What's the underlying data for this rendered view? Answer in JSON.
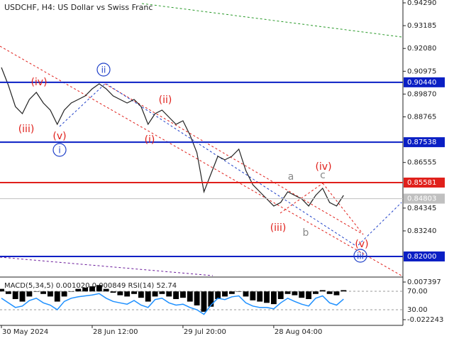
{
  "chart_data": [
    {
      "type": "line",
      "title": "USDCHF, H4:  US Dollar vs Swiss Franc",
      "color": "#222222",
      "x": [
        0,
        1,
        2,
        3,
        4,
        5,
        6,
        7,
        8,
        9,
        10,
        11,
        12,
        13,
        14,
        15,
        16,
        17,
        18,
        19,
        20,
        21,
        22,
        23,
        24,
        25,
        26,
        27,
        28,
        29,
        30,
        31,
        32,
        33,
        34,
        35,
        36,
        37,
        38,
        39,
        40,
        41,
        42,
        43,
        44,
        45,
        46,
        47,
        48,
        49
      ],
      "values": [
        0.91157,
        0.90297,
        0.89264,
        0.8892,
        0.89608,
        0.89953,
        0.89436,
        0.89092,
        0.88404,
        0.89092,
        0.89436,
        0.89608,
        0.89781,
        0.90125,
        0.90366,
        0.90125,
        0.89781,
        0.89608,
        0.89436,
        0.89608,
        0.89264,
        0.88404,
        0.8892,
        0.89092,
        0.88748,
        0.88404,
        0.88576,
        0.87887,
        0.87027,
        0.85133,
        0.85994,
        0.86855,
        0.86682,
        0.86855,
        0.87199,
        0.86166,
        0.85478,
        0.85133,
        0.84789,
        0.84445,
        0.84617,
        0.85133,
        0.84961,
        0.84789,
        0.84445,
        0.84961,
        0.85305,
        0.84617,
        0.84445,
        0.84961
      ],
      "xlim": [
        0,
        57.5
      ],
      "xticks": [
        {
          "value": 0,
          "label": "30 May 2024"
        },
        {
          "value": 13,
          "label": "28 Jun 12:00"
        },
        {
          "value": 26,
          "label": "29 Jul 20:00"
        },
        {
          "value": 39,
          "label": "28 Aug 04:00"
        }
      ],
      "ylim": [
        0.81071,
        0.94428
      ],
      "yticks": [
        {
          "value": 0.9429,
          "label": "0.94290"
        },
        {
          "value": 0.93185,
          "label": "0.93185"
        },
        {
          "value": 0.9208,
          "label": "0.92080"
        },
        {
          "value": 0.90975,
          "label": "0.90975"
        },
        {
          "value": 0.8987,
          "label": "0.89870"
        },
        {
          "value": 0.88765,
          "label": "0.88765"
        },
        {
          "value": 0.86555,
          "label": "0.86555"
        },
        {
          "value": 0.84345,
          "label": "0.84345"
        },
        {
          "value": 0.8324,
          "label": "0.83240"
        }
      ],
      "levels": [
        {
          "value": 0.9044,
          "label": "0.90440",
          "color": "#0a1fc4"
        },
        {
          "value": 0.87538,
          "label": "0.87538",
          "color": "#0a1fc4"
        },
        {
          "value": 0.85581,
          "label": "0.85581",
          "color": "#e0201b"
        },
        {
          "value": 0.82,
          "label": "0.82000",
          "color": "#0a1fc4"
        }
      ],
      "current": {
        "value": 0.84803,
        "label": "0.84803",
        "color": "#c0c0c0"
      },
      "annotations": [
        {
          "text": "(iv)",
          "color": "#e0201b"
        },
        {
          "text": "(iii)",
          "color": "#e0201b"
        },
        {
          "text": "(v)",
          "color": "#e0201b"
        },
        {
          "text": "i",
          "color": "#1e3fc8",
          "circled": true
        },
        {
          "text": "ii",
          "color": "#1e3fc8",
          "circled": true
        },
        {
          "text": "(ii)",
          "color": "#e0201b"
        },
        {
          "text": "(i)",
          "color": "#e0201b"
        },
        {
          "text": "a",
          "color": "#888888"
        },
        {
          "text": "(iv)",
          "color": "#e0201b"
        },
        {
          "text": "c",
          "color": "#888888"
        },
        {
          "text": "(iii)",
          "color": "#e0201b"
        },
        {
          "text": "b",
          "color": "#888888"
        },
        {
          "text": "(v)",
          "color": "#e0201b"
        },
        {
          "text": "iii",
          "color": "#1e3fc8",
          "circled": true
        }
      ]
    },
    {
      "type": "macd",
      "title": "MACD(5,34,5) 0.001020 0.000849 RSI(14) 52.74",
      "series": [
        {
          "color": "#000000",
          "values": [
            0.002,
            -0.002,
            -0.006,
            -0.008,
            -0.004,
            0.0,
            -0.002,
            -0.004,
            -0.008,
            -0.004,
            0.0,
            0.002,
            0.003,
            0.004,
            0.005,
            0.002,
            -0.001,
            -0.003,
            -0.004,
            -0.002,
            -0.005,
            -0.008,
            -0.004,
            -0.002,
            -0.004,
            -0.006,
            -0.005,
            -0.008,
            -0.011,
            -0.016,
            -0.012,
            -0.006,
            -0.004,
            -0.002,
            0.0,
            -0.004,
            -0.007,
            -0.008,
            -0.009,
            -0.01,
            -0.006,
            -0.002,
            -0.003,
            -0.005,
            -0.006,
            -0.002,
            0.001,
            -0.002,
            -0.003,
            0.001
          ]
        },
        {
          "color": "#1e90ff",
          "axis": "y2",
          "values": [
            55,
            45,
            35,
            38,
            50,
            55,
            45,
            40,
            30,
            48,
            55,
            58,
            60,
            62,
            65,
            55,
            48,
            45,
            42,
            50,
            40,
            35,
            52,
            55,
            45,
            40,
            42,
            35,
            30,
            20,
            40,
            55,
            52,
            58,
            60,
            45,
            38,
            35,
            35,
            32,
            45,
            55,
            48,
            42,
            38,
            55,
            60,
            45,
            40,
            53
          ]
        }
      ],
      "ylim": [
        -0.02672,
        0.01019
      ],
      "yticks": [
        0.007397,
        -0.022243
      ],
      "y2lim": [
        -3.8,
        97.7
      ],
      "y2ticks": [
        {
          "value": 70,
          "label": "70.00"
        },
        {
          "value": 30,
          "label": "30.00"
        }
      ]
    }
  ]
}
